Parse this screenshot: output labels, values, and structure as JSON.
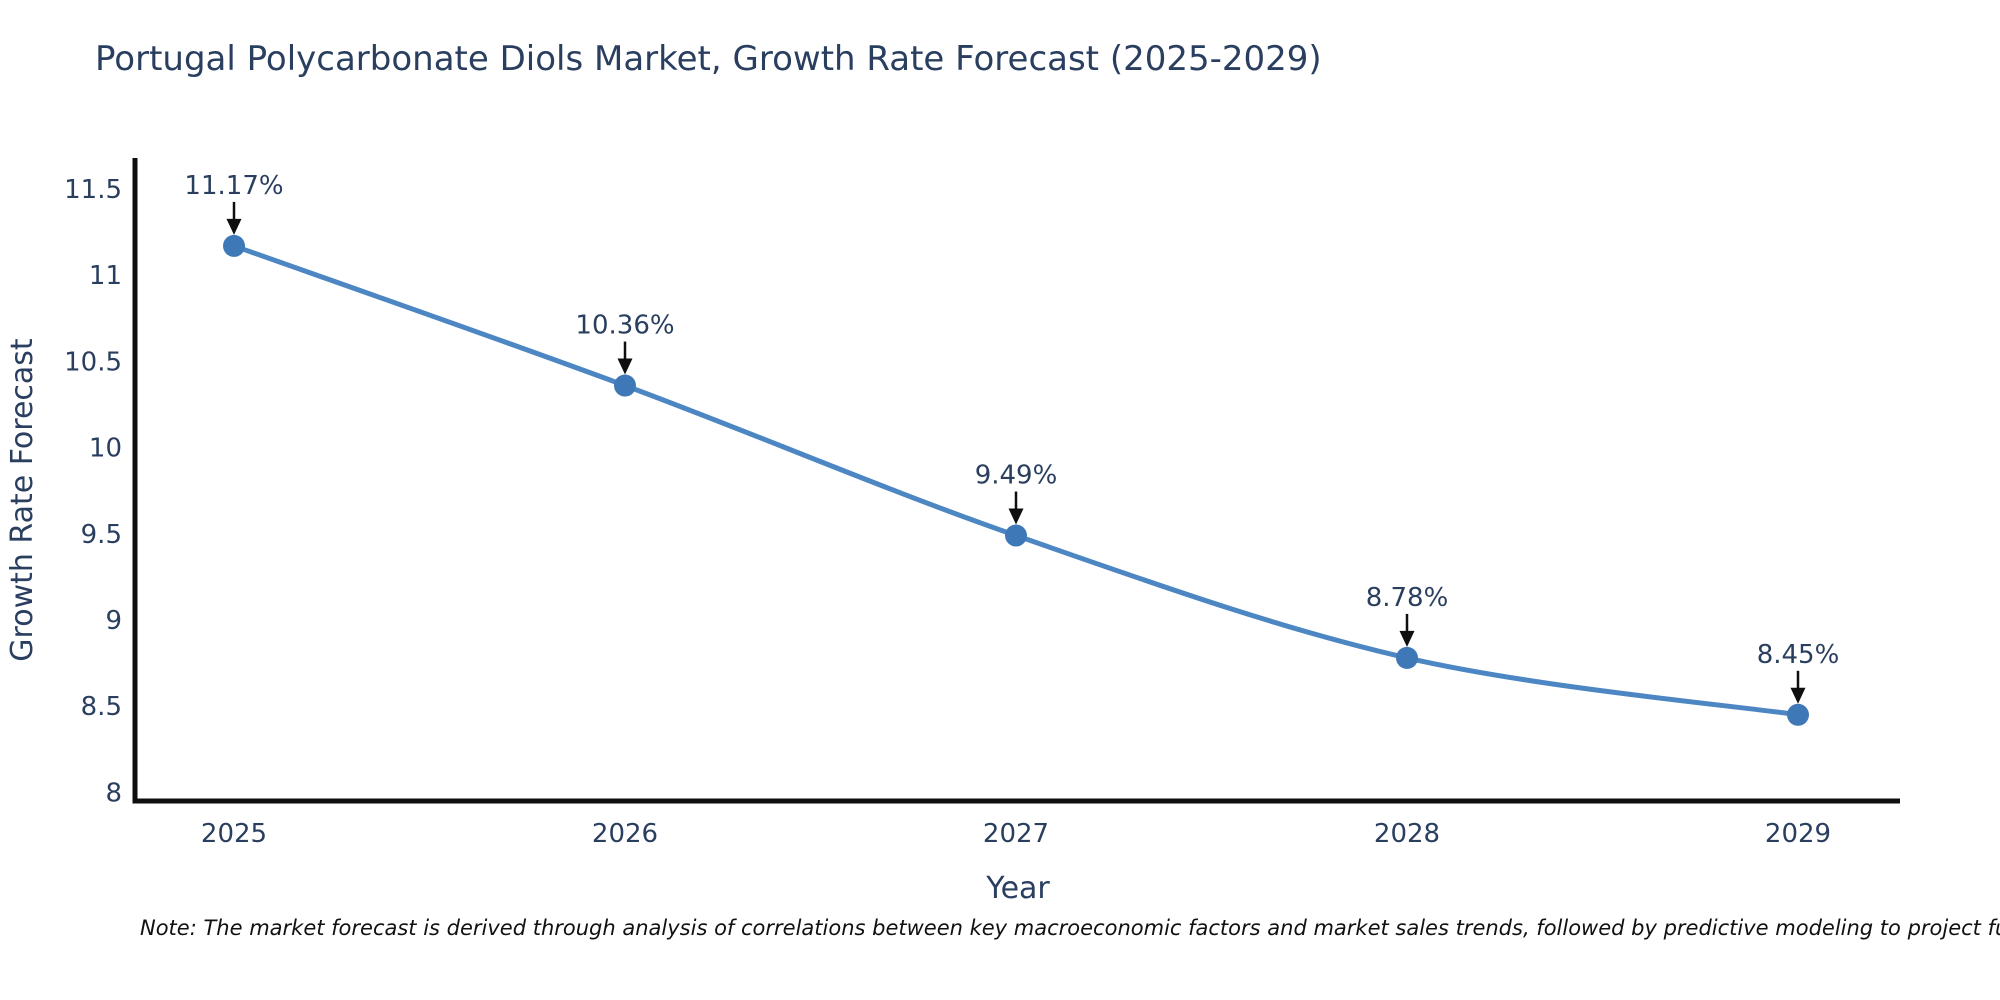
{
  "page": {
    "background": "#ffffff"
  },
  "note": "Note: The market forecast is derived through analysis of correlations between key macroeconomic factors and market sales trends, followed by predictive modeling to project future sal",
  "chart_data": {
    "type": "line",
    "title": "Portugal Polycarbonate Diols Market, Growth Rate Forecast (2025-2029)",
    "xlabel": "Year",
    "ylabel": "Growth Rate Forecast",
    "x": [
      "2025",
      "2026",
      "2027",
      "2028",
      "2029"
    ],
    "series": [
      {
        "name": "Growth Rate Forecast",
        "values": [
          11.17,
          10.36,
          9.49,
          8.78,
          8.45
        ],
        "point_labels": [
          "11.17%",
          "10.36%",
          "9.49%",
          "8.78%",
          "8.45%"
        ]
      }
    ],
    "yticks": [
      8,
      8.5,
      9,
      9.5,
      10,
      10.5,
      11,
      11.5
    ],
    "ylim": [
      7.95,
      11.68
    ],
    "line_shape": "spline",
    "grid": false,
    "legend_position": "none",
    "annotations_have_arrows": true,
    "colors": {
      "line": "#4d87c3",
      "marker": "#3f78b6",
      "axis": "#0f0f0f",
      "text": "#2a3f5f",
      "arrow": "#0f0f0f",
      "note_text": "#111111"
    }
  }
}
